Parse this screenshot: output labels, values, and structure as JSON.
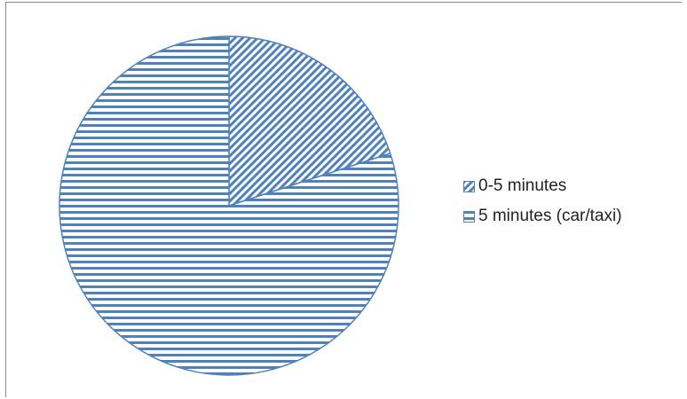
{
  "colors": {
    "accent": "#4F81BD",
    "border": "#8A8A8A",
    "background": "#FFFFFF"
  },
  "chart_data": {
    "type": "pie",
    "title": "",
    "slices": [
      {
        "label": "0-5 minutes",
        "value": 20,
        "pattern": "diagonal-stripes"
      },
      {
        "label": "5 minutes (car/taxi)",
        "value": 80,
        "pattern": "horizontal-stripes"
      }
    ],
    "start_angle": "12 o'clock",
    "direction": "clockwise",
    "legend": {
      "position": "right",
      "entries": [
        "0-5 minutes",
        "5 minutes (car/taxi)"
      ]
    }
  }
}
